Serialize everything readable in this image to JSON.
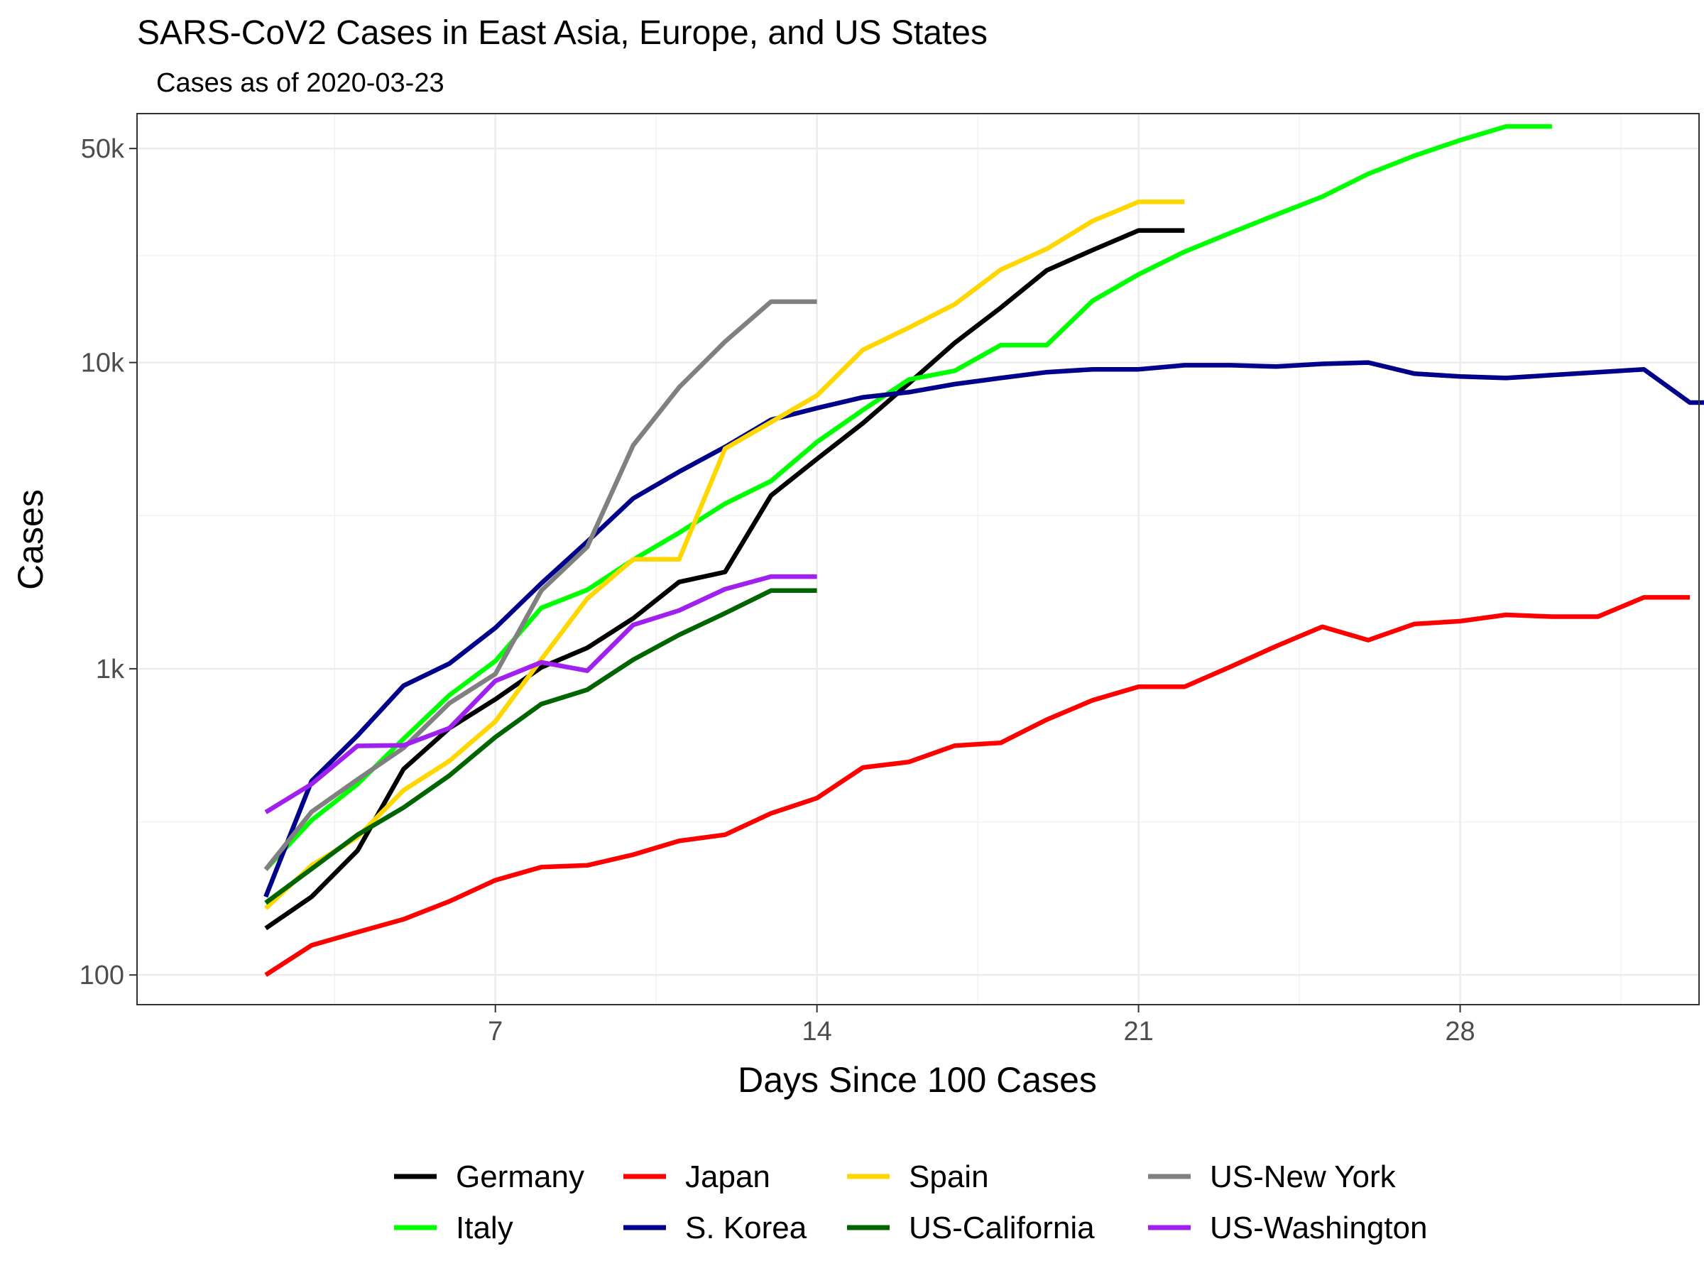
{
  "chart_data": {
    "type": "line",
    "title": "SARS-CoV2 Cases in East Asia, Europe, and US States",
    "subtitle": "Cases as of 2020-03-23",
    "xlabel": "Days Since 100 Cases",
    "ylabel": "Cases",
    "x_scale": "linear",
    "y_scale": "log10",
    "xlim": [
      -0.8,
      33.2
    ],
    "ylim": [
      80,
      65000
    ],
    "x_ticks": [
      7,
      14,
      21,
      28
    ],
    "x_tick_labels": [
      "7",
      "14",
      "21",
      "28"
    ],
    "y_ticks": [
      100,
      1000,
      10000,
      50000
    ],
    "y_tick_labels": [
      "100",
      "1k",
      "10k",
      "50k"
    ],
    "grid": true,
    "legend_position": "bottom",
    "series": [
      {
        "name": "Germany",
        "color": "#000000",
        "x_start": 2,
        "values": [
          142,
          180,
          255,
          470,
          640,
          795,
          1010,
          1170,
          1460,
          1920,
          2070,
          3680,
          4840,
          6340,
          8550,
          11600,
          15100,
          20000,
          23300,
          27000,
          27000
        ]
      },
      {
        "name": "Italy",
        "color": "#00ff00",
        "x_start": 2,
        "values": [
          221,
          320,
          420,
          590,
          820,
          1060,
          1580,
          1810,
          2270,
          2780,
          3460,
          4100,
          5500,
          7000,
          8800,
          9400,
          11400,
          11400,
          15900,
          19400,
          23000,
          26500,
          30400,
          34800,
          41300,
          47300,
          53200,
          59000,
          59000
        ]
      },
      {
        "name": "Japan",
        "color": "#ff0000",
        "x_start": 2,
        "values": [
          100,
          125,
          138,
          152,
          174,
          204,
          225,
          228,
          247,
          274,
          287,
          337,
          378,
          476,
          496,
          561,
          573,
          682,
          789,
          873,
          873,
          1015,
          1186,
          1372,
          1240,
          1400,
          1430,
          1500,
          1480,
          1480,
          1710,
          1710
        ]
      },
      {
        "name": "S. Korea",
        "color": "#00008b",
        "x_start": 2,
        "values": [
          180,
          430,
          605,
          880,
          1040,
          1360,
          1900,
          2600,
          3600,
          4400,
          5300,
          6500,
          7100,
          7700,
          8000,
          8500,
          8900,
          9300,
          9500,
          9500,
          9800,
          9800,
          9700,
          9900,
          10000,
          9200,
          9000,
          8900,
          9100,
          9300,
          9500,
          7400,
          7400
        ]
      },
      {
        "name": "Spain",
        "color": "#ffd700",
        "x_start": 2,
        "values": [
          165,
          228,
          282,
          401,
          500,
          673,
          1073,
          1695,
          2277,
          2277,
          5232,
          6391,
          7800,
          11000,
          13000,
          15500,
          20100,
          23500,
          29000,
          33500,
          33500
        ]
      },
      {
        "name": "US-California",
        "color": "#006400",
        "x_start": 2,
        "values": [
          172,
          222,
          287,
          352,
          448,
          598,
          767,
          854,
          1070,
          1290,
          1518,
          1800,
          1800
        ]
      },
      {
        "name": "US-New York",
        "color": "#808080",
        "x_start": 2,
        "values": [
          221,
          341,
          435,
          551,
          772,
          962,
          1800,
          2500,
          5365,
          8300,
          11700,
          15800,
          15800
        ]
      },
      {
        "name": "US-Washington",
        "color": "#a020f0",
        "x_start": 2,
        "values": [
          340,
          420,
          560,
          562,
          640,
          913,
          1050,
          985,
          1390,
          1550,
          1820,
          2000,
          2000
        ]
      }
    ]
  }
}
